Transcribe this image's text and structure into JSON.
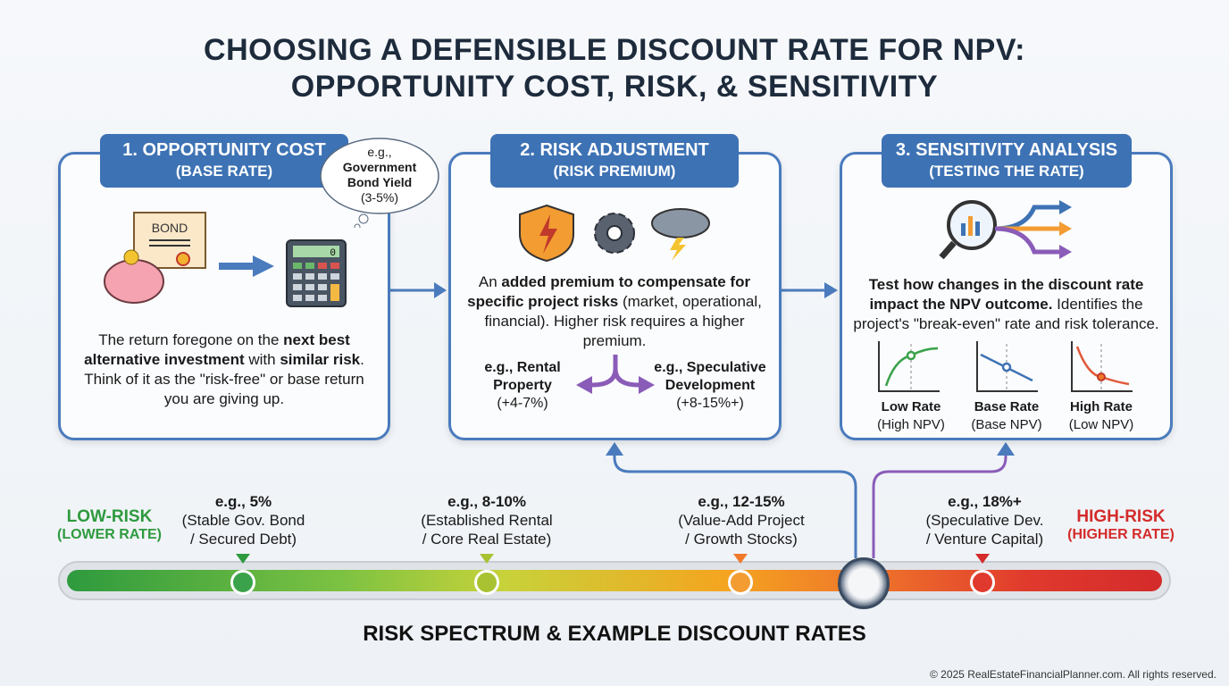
{
  "title": {
    "line1": "CHOOSING A DEFENSIBLE DISCOUNT RATE FOR NPV:",
    "line2": "OPPORTUNITY COST, RISK, & SENSITIVITY"
  },
  "cards": [
    {
      "heading": "1. OPPORTUNITY COST",
      "sub": "(BASE RATE)",
      "bond_label": "BOND",
      "calc_display": "0",
      "thought": {
        "eg": "e.g.,",
        "bold": "Government Bond Yield",
        "range": "(3-5%)"
      },
      "body": {
        "p1": "The return foregone on the ",
        "b1": "next best alternative investment",
        "p2": " with ",
        "b2": "similar risk",
        "p3": ". Think of it as the \"risk-free\" or base return you are giving up."
      }
    },
    {
      "heading": "2. RISK ADJUSTMENT",
      "sub": "(RISK PREMIUM)",
      "body": {
        "p1": "An ",
        "b1": "added premium to compensate for specific project risks",
        "p2": " (market, operational, financial). Higher risk requires a higher premium."
      },
      "left": {
        "label": "e.g., Rental Property",
        "range": "(+4-7%)"
      },
      "right": {
        "label": "e.g., Speculative Development",
        "range": "(+8-15%+)"
      }
    },
    {
      "heading": "3. SENSITIVITY ANALYSIS",
      "sub": "(TESTING THE RATE)",
      "body": {
        "b1": "Test how changes in the discount rate impact the NPV outcome.",
        "p1": " Identifies the project's \"break-even\" rate and risk tolerance."
      },
      "graphs": [
        {
          "label": "Low Rate",
          "sub": "(High NPV)"
        },
        {
          "label": "Base Rate",
          "sub": "(Base NPV)"
        },
        {
          "label": "High Rate",
          "sub": "(Low NPV)"
        }
      ]
    }
  ],
  "spectrum": {
    "low": {
      "label": "LOW-RISK",
      "sub": "(LOWER RATE)",
      "color": "#2e9a3e"
    },
    "high": {
      "label": "HIGH-RISK",
      "sub": "(HIGHER RATE)",
      "color": "#d42b2b"
    },
    "points": [
      {
        "rate": "e.g., 5%",
        "l1": "(Stable Gov. Bond",
        "l2": "/ Secured Debt)",
        "color": "#2e9a3e"
      },
      {
        "rate": "e.g., 8-10%",
        "l1": "(Established Rental",
        "l2": "/ Core Real Estate)",
        "color": "#a8c232"
      },
      {
        "rate": "e.g., 12-15%",
        "l1": "(Value-Add Project",
        "l2": "/ Growth Stocks)",
        "color": "#f07a2a"
      },
      {
        "rate": "e.g., 18%+",
        "l1": "(Speculative Dev.",
        "l2": "/ Venture Capital)",
        "color": "#d42b2b"
      }
    ],
    "caption": "RISK SPECTRUM & EXAMPLE DISCOUNT RATES"
  },
  "footer": "© 2025 RealEstateFinancialPlanner.com. All rights reserved."
}
